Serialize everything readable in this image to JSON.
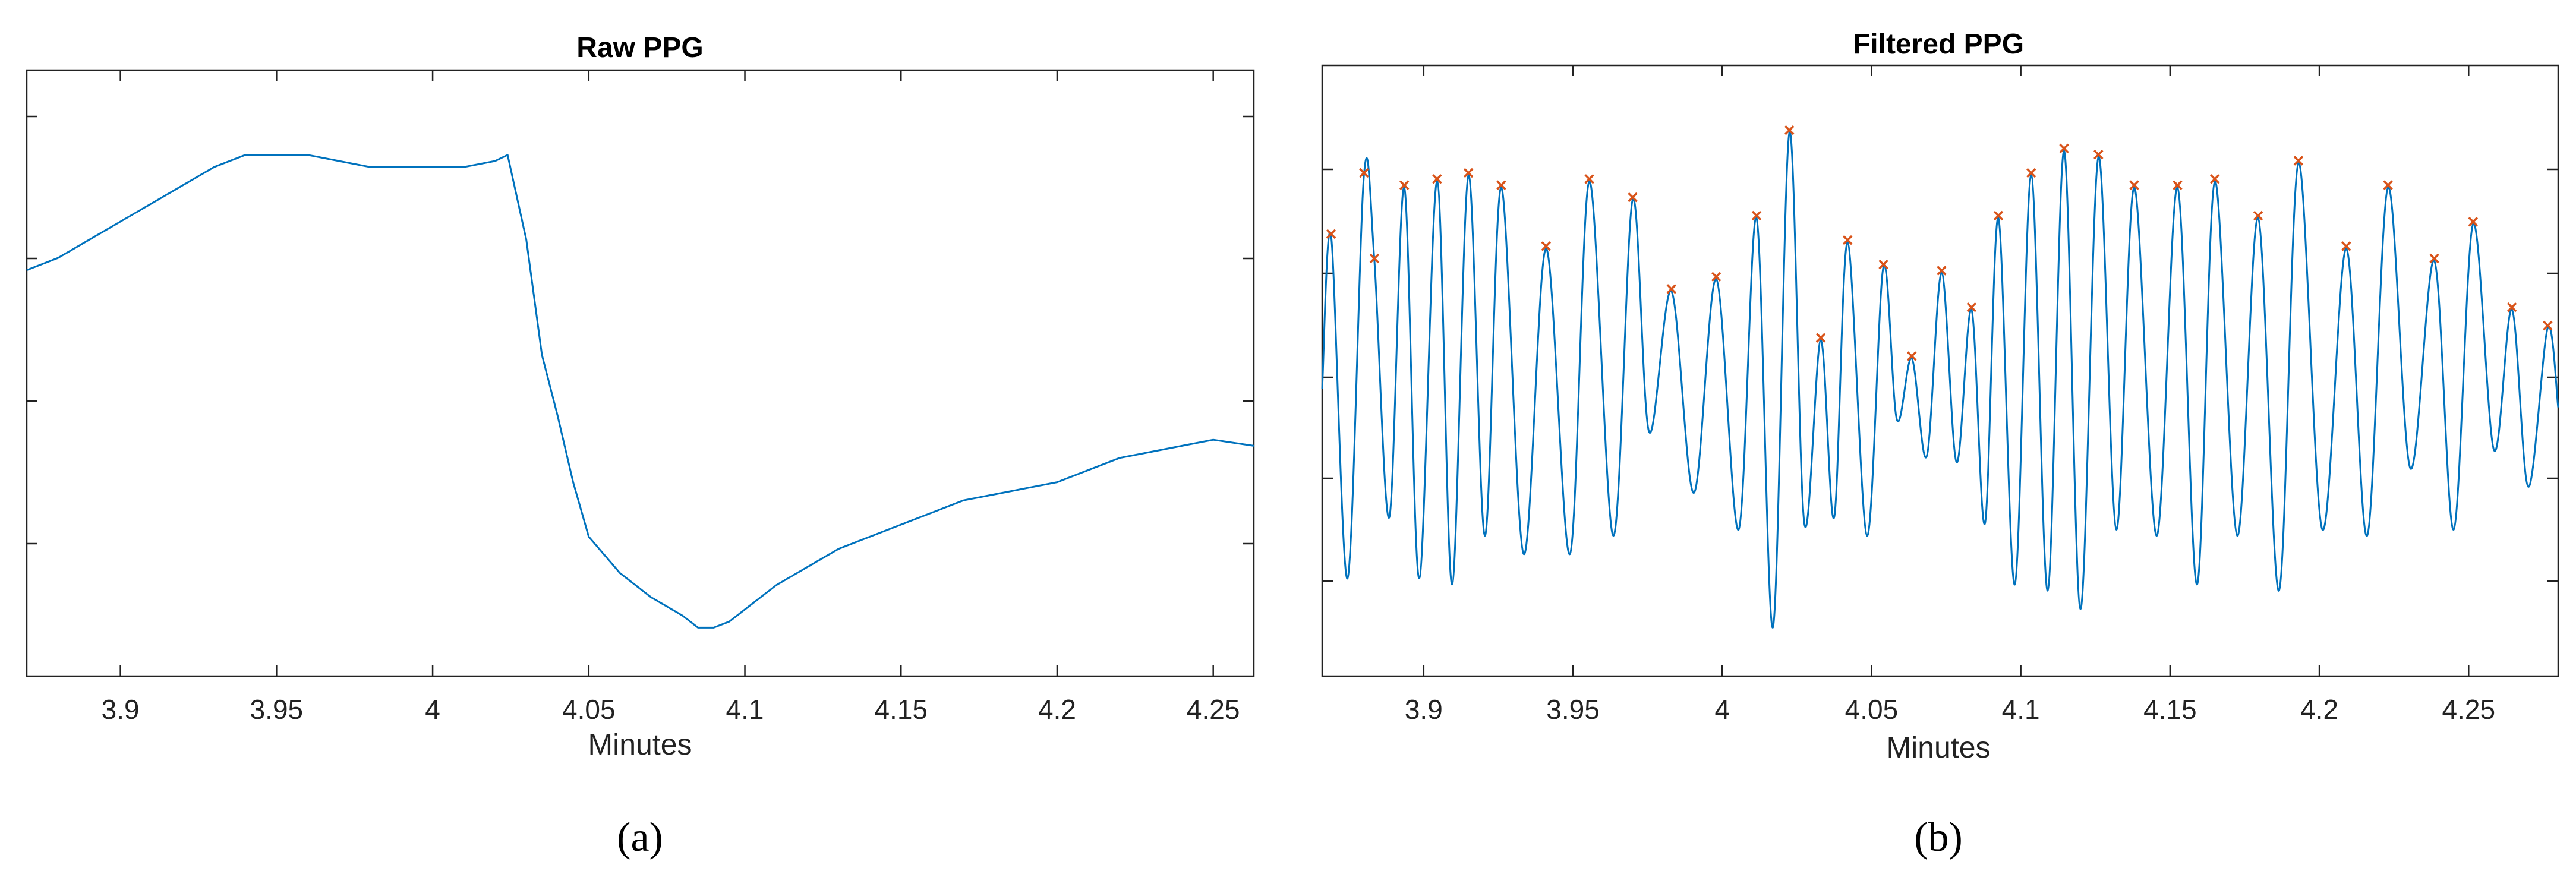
{
  "chart_data": [
    {
      "type": "line",
      "panel": "(a)",
      "title": "Raw PPG",
      "xlabel": "Minutes",
      "ylabel": "",
      "xlim": [
        3.87,
        4.263
      ],
      "ylim": [
        0,
        1
      ],
      "x_ticks": [
        3.9,
        3.95,
        4,
        4.05,
        4.1,
        4.15,
        4.2,
        4.25
      ],
      "x_tick_labels": [
        "3.9",
        "3.95",
        "4",
        "4.05",
        "4.1",
        "4.15",
        "4.2",
        "4.25"
      ],
      "y_tick_labels_shown": false,
      "series": [
        {
          "color": "#0072BD",
          "x": [
            3.87,
            3.88,
            3.89,
            3.9,
            3.91,
            3.92,
            3.93,
            3.94,
            3.95,
            3.96,
            3.97,
            3.98,
            3.99,
            4.0,
            4.01,
            4.02,
            4.024,
            4.03,
            4.035,
            4.04,
            4.045,
            4.05,
            4.055,
            4.06,
            4.07,
            4.08,
            4.085,
            4.09,
            4.095,
            4.1,
            4.11,
            4.12,
            4.13,
            4.14,
            4.15,
            4.16,
            4.17,
            4.18,
            4.19,
            4.2,
            4.21,
            4.22,
            4.23,
            4.24,
            4.25,
            4.263
          ],
          "y": [
            0.67,
            0.69,
            0.72,
            0.75,
            0.78,
            0.81,
            0.84,
            0.86,
            0.86,
            0.86,
            0.85,
            0.84,
            0.84,
            0.84,
            0.84,
            0.85,
            0.86,
            0.72,
            0.53,
            0.43,
            0.32,
            0.23,
            0.2,
            0.17,
            0.13,
            0.1,
            0.08,
            0.08,
            0.09,
            0.11,
            0.15,
            0.18,
            0.21,
            0.23,
            0.25,
            0.27,
            0.29,
            0.3,
            0.31,
            0.32,
            0.34,
            0.36,
            0.37,
            0.38,
            0.39,
            0.38
          ]
        }
      ]
    },
    {
      "type": "line",
      "panel": "(b)",
      "title": "Filtered PPG",
      "xlabel": "Minutes",
      "ylabel": "",
      "xlim": [
        3.866,
        4.28
      ],
      "ylim": [
        0,
        1
      ],
      "x_ticks": [
        3.9,
        3.95,
        4,
        4.05,
        4.1,
        4.15,
        4.2,
        4.25
      ],
      "x_tick_labels": [
        "3.9",
        "3.95",
        "4",
        "4.05",
        "4.1",
        "4.15",
        "4.2",
        "4.25"
      ],
      "y_tick_labels_shown": false,
      "series": [
        {
          "color": "#0072BD",
          "x": [
            3.866,
            3.869,
            3.8745,
            3.88,
            3.8835,
            3.8885,
            3.8935,
            3.8985,
            3.9045,
            3.9095,
            3.915,
            3.9205,
            3.926,
            3.9335,
            3.941,
            3.949,
            3.9555,
            3.9635,
            3.97,
            3.9755,
            3.983,
            3.9905,
            3.998,
            4.0055,
            4.0115,
            4.017,
            4.0225,
            4.0275,
            4.033,
            4.0375,
            4.042,
            4.0485,
            4.054,
            4.0585,
            4.0635,
            4.0685,
            4.0735,
            4.0785,
            4.0835,
            4.088,
            4.0925,
            4.098,
            4.1035,
            4.109,
            4.1145,
            4.12,
            4.126,
            4.132,
            4.138,
            4.1455,
            4.1525,
            4.159,
            4.165,
            4.1725,
            4.1795,
            4.1865,
            4.193,
            4.201,
            4.209,
            4.216,
            4.223,
            4.2305,
            4.2385,
            4.245,
            4.2515,
            4.2585,
            4.2645,
            4.27,
            4.2765,
            4.28
          ],
          "y": [
            0.47,
            0.72,
            0.16,
            0.82,
            0.68,
            0.26,
            0.8,
            0.16,
            0.81,
            0.15,
            0.82,
            0.23,
            0.8,
            0.2,
            0.7,
            0.2,
            0.81,
            0.23,
            0.78,
            0.4,
            0.63,
            0.3,
            0.65,
            0.24,
            0.75,
            0.08,
            0.89,
            0.25,
            0.55,
            0.26,
            0.71,
            0.23,
            0.67,
            0.42,
            0.52,
            0.36,
            0.66,
            0.35,
            0.6,
            0.25,
            0.75,
            0.15,
            0.82,
            0.14,
            0.86,
            0.11,
            0.85,
            0.24,
            0.8,
            0.23,
            0.8,
            0.15,
            0.81,
            0.23,
            0.75,
            0.14,
            0.84,
            0.24,
            0.7,
            0.23,
            0.8,
            0.34,
            0.68,
            0.24,
            0.74,
            0.37,
            0.6,
            0.31,
            0.57,
            0.44
          ]
        }
      ],
      "peaks": {
        "color": "#D95319",
        "marker": "x",
        "x": [
          3.869,
          3.88,
          3.8835,
          3.8935,
          3.9045,
          3.915,
          3.926,
          3.941,
          3.9555,
          3.97,
          3.983,
          3.998,
          4.0115,
          4.0225,
          4.033,
          4.042,
          4.054,
          4.0635,
          4.0735,
          4.0835,
          4.0925,
          4.1035,
          4.1145,
          4.126,
          4.138,
          4.1525,
          4.165,
          4.1795,
          4.193,
          4.209,
          4.223,
          4.2385,
          4.2515,
          4.2645,
          4.2765
        ],
        "y": [
          0.72,
          0.82,
          0.68,
          0.8,
          0.81,
          0.82,
          0.8,
          0.7,
          0.81,
          0.78,
          0.63,
          0.65,
          0.75,
          0.89,
          0.55,
          0.71,
          0.67,
          0.52,
          0.66,
          0.6,
          0.75,
          0.82,
          0.86,
          0.85,
          0.8,
          0.8,
          0.81,
          0.75,
          0.84,
          0.7,
          0.8,
          0.68,
          0.74,
          0.6,
          0.57
        ]
      }
    }
  ]
}
